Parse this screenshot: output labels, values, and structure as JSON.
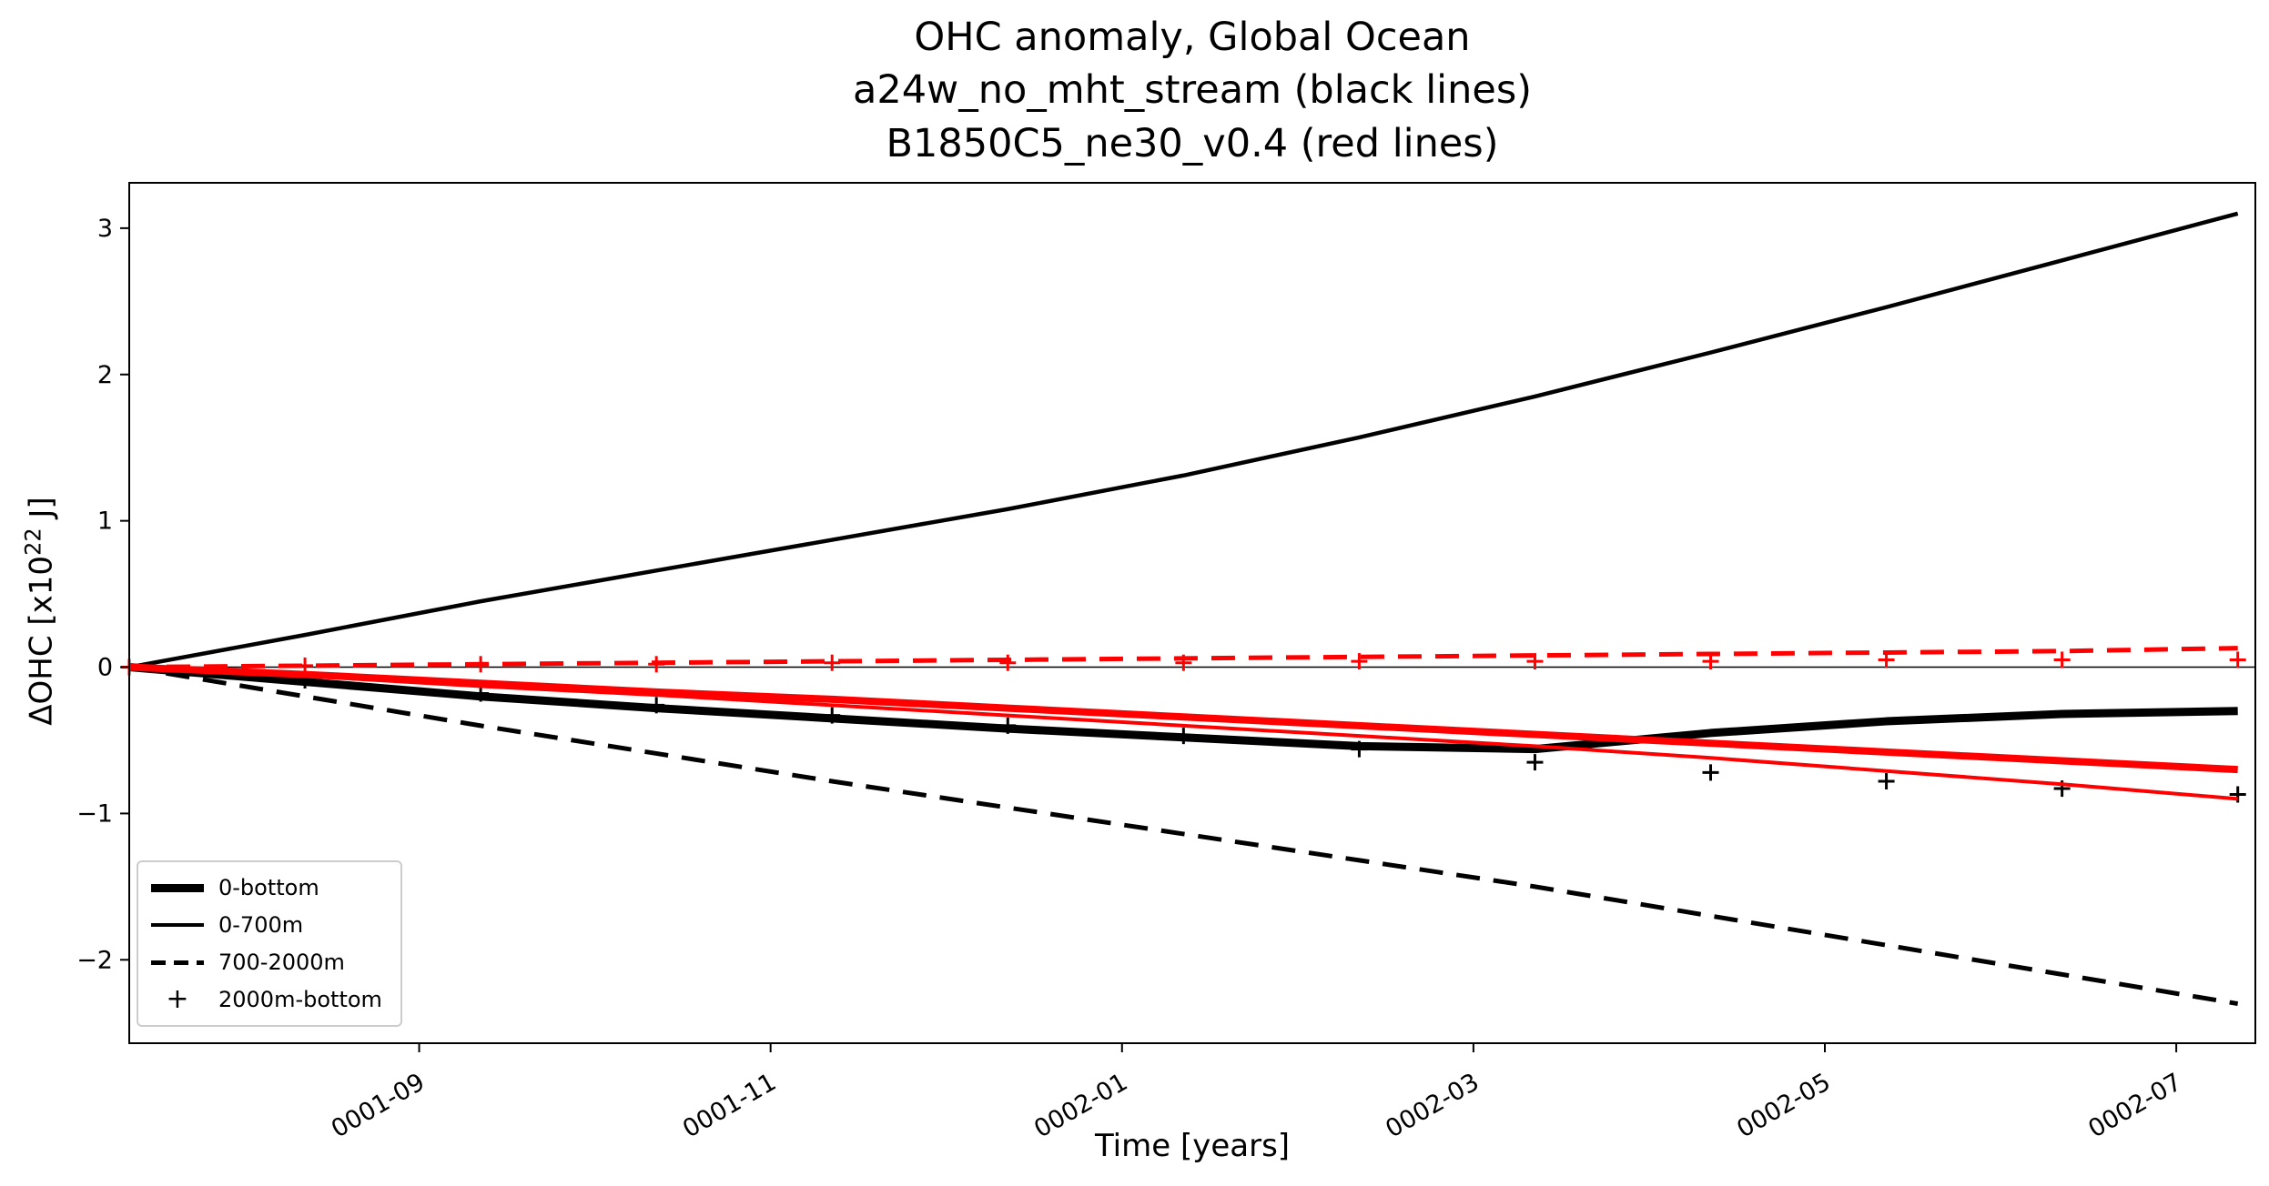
{
  "chart_data": {
    "type": "line",
    "title_lines": [
      "OHC anomaly, Global Ocean",
      "a24w_no_mht_stream (black lines)",
      "B1850C5_ne30_v0.4 (red lines)"
    ],
    "xlabel": "Time [years]",
    "ylabel": {
      "prefix": "ΔOHC  [x10",
      "sup": "22",
      "suffix": " J]"
    },
    "runs": [
      {
        "name": "a24w_no_mht_stream",
        "color": "#000000"
      },
      {
        "name": "B1850C5_ne30_v0.4",
        "color": "#ff0000"
      }
    ],
    "grid": false,
    "zero_line": true,
    "legend_position": "lower left",
    "x_tick_rotation_deg": 30,
    "x_domain_months": [
      0,
      12.1
    ],
    "y_range": [
      -2.57,
      3.31
    ],
    "x_ticks": [
      {
        "t": 1.65,
        "label": "0001-09"
      },
      {
        "t": 3.65,
        "label": "0001-11"
      },
      {
        "t": 5.65,
        "label": "0002-01"
      },
      {
        "t": 7.65,
        "label": "0002-03"
      },
      {
        "t": 9.65,
        "label": "0002-05"
      },
      {
        "t": 11.65,
        "label": "0002-07"
      }
    ],
    "y_ticks": [
      {
        "v": 3,
        "label": "3"
      },
      {
        "v": 2,
        "label": "2"
      },
      {
        "v": 1,
        "label": "1"
      },
      {
        "v": 0,
        "label": "0"
      },
      {
        "v": -1,
        "label": "−1"
      },
      {
        "v": -2,
        "label": "−2"
      }
    ],
    "x_months": [
      0,
      1,
      2,
      3,
      4,
      5,
      6,
      7,
      8,
      9,
      10,
      11,
      12
    ],
    "series": [
      {
        "id": "black-0-bottom",
        "run": "a24w_no_mht_stream",
        "layer": "0-bottom",
        "color": "#000000",
        "line_width": 9,
        "dash": null,
        "marker": null,
        "y": [
          0.0,
          -0.1,
          -0.2,
          -0.28,
          -0.35,
          -0.42,
          -0.48,
          -0.54,
          -0.56,
          -0.45,
          -0.37,
          -0.32,
          -0.3
        ]
      },
      {
        "id": "black-0-700m",
        "run": "a24w_no_mht_stream",
        "layer": "0-700m",
        "color": "#000000",
        "line_width": 4.5,
        "dash": null,
        "marker": null,
        "y": [
          0.0,
          0.22,
          0.45,
          0.66,
          0.87,
          1.08,
          1.31,
          1.57,
          1.85,
          2.15,
          2.46,
          2.78,
          3.1
        ]
      },
      {
        "id": "black-700-2000m",
        "run": "a24w_no_mht_stream",
        "layer": "700-2000m",
        "color": "#000000",
        "line_width": 5,
        "dash": "26 15",
        "marker": null,
        "y": [
          0.0,
          -0.2,
          -0.4,
          -0.59,
          -0.78,
          -0.96,
          -1.14,
          -1.32,
          -1.5,
          -1.7,
          -1.9,
          -2.1,
          -2.3
        ]
      },
      {
        "id": "black-2000m-bottom",
        "run": "a24w_no_mht_stream",
        "layer": "2000m-bottom",
        "color": "#000000",
        "line_width": 0,
        "dash": null,
        "marker": "+",
        "y": [
          0.0,
          -0.09,
          -0.18,
          -0.26,
          -0.33,
          -0.4,
          -0.47,
          -0.56,
          -0.65,
          -0.72,
          -0.78,
          -0.83,
          -0.87
        ]
      },
      {
        "id": "red-0-bottom",
        "run": "B1850C5_ne30_v0.4",
        "layer": "0-bottom",
        "color": "#ff0000",
        "line_width": 8,
        "dash": null,
        "marker": null,
        "y": [
          0.0,
          -0.05,
          -0.11,
          -0.17,
          -0.22,
          -0.28,
          -0.34,
          -0.4,
          -0.46,
          -0.52,
          -0.58,
          -0.64,
          -0.7
        ]
      },
      {
        "id": "red-0-700m",
        "run": "B1850C5_ne30_v0.4",
        "layer": "0-700m",
        "color": "#ff0000",
        "line_width": 4,
        "dash": null,
        "marker": null,
        "y": [
          0.0,
          -0.06,
          -0.13,
          -0.19,
          -0.26,
          -0.33,
          -0.4,
          -0.47,
          -0.54,
          -0.62,
          -0.71,
          -0.8,
          -0.9
        ]
      },
      {
        "id": "red-700-2000m",
        "run": "B1850C5_ne30_v0.4",
        "layer": "700-2000m",
        "color": "#ff0000",
        "line_width": 5,
        "dash": "26 15",
        "marker": null,
        "y": [
          0.0,
          0.01,
          0.02,
          0.03,
          0.04,
          0.05,
          0.06,
          0.07,
          0.08,
          0.09,
          0.1,
          0.11,
          0.13
        ]
      },
      {
        "id": "red-2000m-bottom",
        "run": "B1850C5_ne30_v0.4",
        "layer": "2000m-bottom",
        "color": "#ff0000",
        "line_width": 0,
        "dash": null,
        "marker": "+",
        "y": [
          0.0,
          0.01,
          0.02,
          0.02,
          0.03,
          0.03,
          0.03,
          0.04,
          0.04,
          0.04,
          0.05,
          0.05,
          0.05
        ]
      }
    ],
    "legend_entries": [
      {
        "label": "0-bottom",
        "sample": "thick-line"
      },
      {
        "label": "0-700m",
        "sample": "thin-line"
      },
      {
        "label": "700-2000m",
        "sample": "dashed-line"
      },
      {
        "label": "2000m-bottom",
        "sample": "plus-marker",
        "glyph": "+"
      }
    ]
  }
}
